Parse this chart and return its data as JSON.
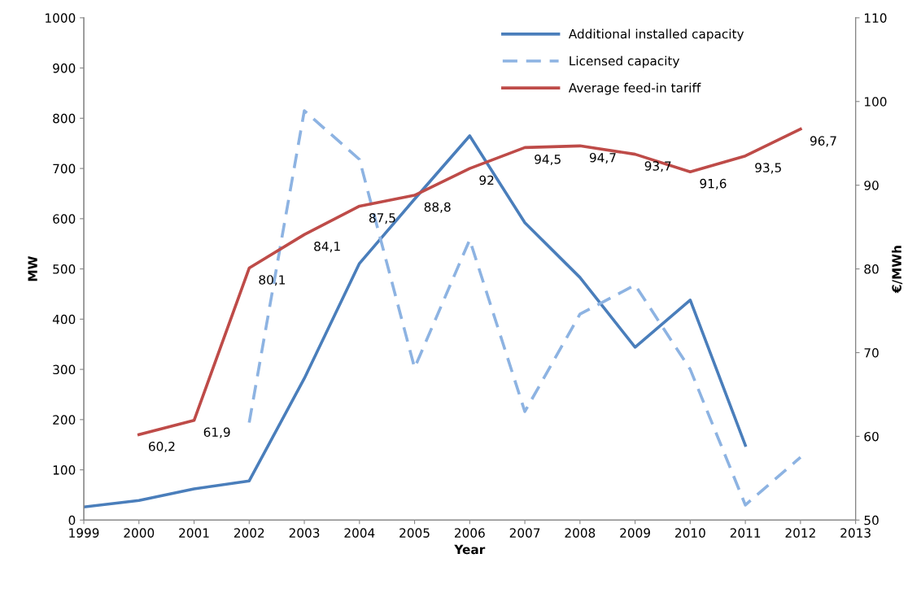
{
  "chart_data": {
    "type": "line",
    "xlabel": "Year",
    "ylabel": "MW",
    "y2label": "€/MWh",
    "xlim": [
      1999,
      2013
    ],
    "xticks": [
      1999,
      2000,
      2001,
      2002,
      2003,
      2004,
      2005,
      2006,
      2007,
      2008,
      2009,
      2010,
      2011,
      2012,
      2013
    ],
    "ylim": [
      0,
      1000
    ],
    "yticks": [
      0,
      100,
      200,
      300,
      400,
      500,
      600,
      700,
      800,
      900,
      1000
    ],
    "y2lim": [
      50,
      110
    ],
    "y2ticks": [
      50,
      60,
      70,
      80,
      90,
      100,
      110
    ],
    "legend": "top right",
    "grid": false,
    "series": [
      {
        "name": "Additional installed capacity",
        "color": "#4a7ebb",
        "line_style": "solid",
        "x": [
          1999,
          2000,
          2001,
          2002,
          2003,
          2004,
          2005,
          2006,
          2007,
          2008,
          2009,
          2010,
          2011
        ],
        "values": [
          26,
          39,
          62,
          78,
          282,
          511,
          639,
          765,
          592,
          483,
          344,
          438,
          149
        ]
      },
      {
        "name": "Licensed capacity",
        "color": "#8db3e2",
        "line_style": "dashed",
        "x": [
          2002,
          2003,
          2004,
          2005,
          2006,
          2007,
          2008,
          2009,
          2010,
          2011,
          2012
        ],
        "values": [
          194,
          815,
          718,
          303,
          558,
          216,
          410,
          468,
          300,
          30,
          125
        ]
      },
      {
        "name": "Average feed-in tariff",
        "color": "#be4b48",
        "line_style": "solid",
        "axis": "y2",
        "x": [
          2000,
          2001,
          2002,
          2003,
          2004,
          2005,
          2006,
          2007,
          2008,
          2009,
          2010,
          2011,
          2012
        ],
        "values": [
          60.2,
          61.9,
          80.1,
          84.1,
          87.5,
          88.8,
          92,
          94.5,
          94.7,
          93.7,
          91.6,
          93.5,
          96.7
        ],
        "value_labels": [
          "60,2",
          "61,9",
          "80,1",
          "84,1",
          "87,5",
          "88,8",
          "92",
          "94,5",
          "94,7",
          "93,7",
          "91,6",
          "93,5",
          "96,7"
        ]
      }
    ]
  }
}
